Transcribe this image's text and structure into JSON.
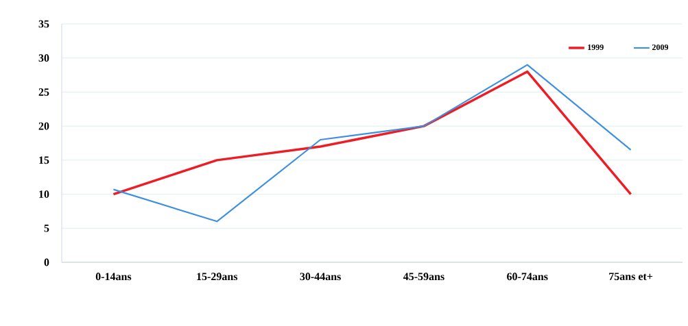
{
  "chart_data": {
    "type": "line",
    "categories": [
      "0-14ans",
      "15-29ans",
      "30-44ans",
      "45-59ans",
      "60-74ans",
      "75ans et+"
    ],
    "series": [
      {
        "name": "1999",
        "color": "#ee1c25",
        "values": [
          10,
          15,
          17,
          20,
          28,
          10
        ]
      },
      {
        "name": "2009",
        "color": "#3d8fe0",
        "values": [
          10.7,
          6,
          18,
          20,
          29,
          16.5
        ]
      }
    ],
    "ylim": [
      0,
      35
    ],
    "yticks": [
      0,
      5,
      10,
      15,
      20,
      25,
      30,
      35
    ],
    "grid": "y",
    "legend": "top right",
    "marker": "none",
    "line_style": "solid"
  }
}
